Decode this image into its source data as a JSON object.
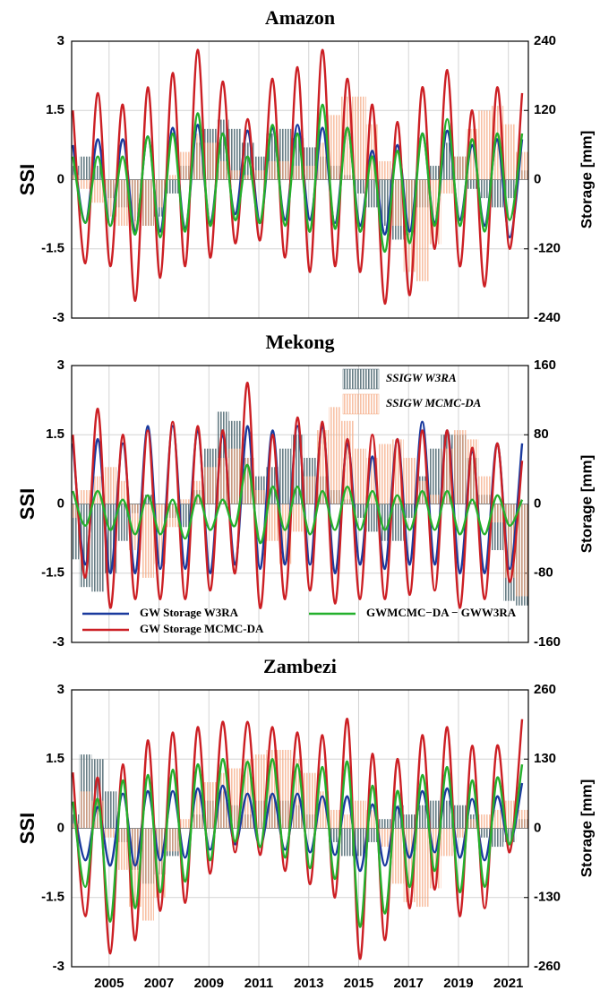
{
  "chart_data": [
    {
      "type": "bar-line",
      "title": "Amazon",
      "ylabel": "SSI",
      "y2label": "Storage [mm]",
      "xlim": [
        2003.5,
        2021.8
      ],
      "xticks": [
        2005,
        2007,
        2009,
        2011,
        2013,
        2015,
        2017,
        2019,
        2021
      ],
      "x_labels_shown": false,
      "ylim": [
        -3,
        3
      ],
      "yticks": [
        -3,
        -1.5,
        0,
        1.5,
        3
      ],
      "y2lim": [
        -240,
        240
      ],
      "y2ticks": [
        -240,
        -120,
        0,
        120,
        240
      ],
      "grid": true,
      "x": [
        2003.55,
        2004.05,
        2004.55,
        2005.05,
        2005.55,
        2006.05,
        2006.55,
        2007.05,
        2007.55,
        2008.05,
        2008.55,
        2009.05,
        2009.55,
        2010.05,
        2010.55,
        2011.05,
        2011.55,
        2012.05,
        2012.55,
        2013.05,
        2013.55,
        2014.05,
        2014.55,
        2015.05,
        2015.55,
        2016.05,
        2016.55,
        2017.05,
        2017.55,
        2018.05,
        2018.55,
        2019.05,
        2019.55,
        2020.05,
        2020.55,
        2021.05,
        2021.55
      ],
      "series": [
        {
          "kind": "bar",
          "color": "#4d6670",
          "values": [
            0.3,
            0.5,
            0.3,
            -0.4,
            -0.6,
            -0.9,
            -1.0,
            -0.8,
            -0.3,
            0.3,
            0.8,
            1.1,
            1.3,
            1.1,
            0.8,
            0.5,
            1.0,
            1.1,
            0.9,
            0.7,
            0.5,
            0.3,
            0.1,
            -0.3,
            -0.6,
            -1.0,
            -1.3,
            -1.2,
            -0.6,
            0.3,
            0.8,
            0.5,
            -0.2,
            -0.4,
            -0.6,
            -0.4,
            0.2
          ]
        },
        {
          "kind": "bar",
          "color": "#f5a77f",
          "values": [
            0.1,
            -0.2,
            -0.5,
            -0.8,
            -1.0,
            -1.1,
            -1.0,
            -0.6,
            0.1,
            0.6,
            1.0,
            0.8,
            0.4,
            0.2,
            0.1,
            0.2,
            0.4,
            0.4,
            0.3,
            0.3,
            0.8,
            1.4,
            1.8,
            1.8,
            1.2,
            0.4,
            -1.0,
            -2.0,
            -2.2,
            -1.4,
            -0.3,
            0.5,
            1.1,
            1.5,
            1.6,
            1.2,
            0.6
          ]
        },
        {
          "kind": "line",
          "axis": "y2",
          "color": "#1a3a9e",
          "values": [
            60,
            -75,
            70,
            -80,
            70,
            -90,
            75,
            -90,
            90,
            -85,
            95,
            -75,
            80,
            -60,
            85,
            -75,
            90,
            -70,
            95,
            -70,
            90,
            -75,
            90,
            -80,
            50,
            -95,
            60,
            -90,
            80,
            -75,
            85,
            -70,
            60,
            -80,
            70,
            -100,
            70
          ]
        },
        {
          "kind": "line",
          "axis": "y2",
          "color": "#cc1f24",
          "values": [
            120,
            -145,
            150,
            -150,
            130,
            -210,
            160,
            -170,
            185,
            -150,
            225,
            -135,
            170,
            -110,
            105,
            -105,
            175,
            -135,
            195,
            -160,
            225,
            -150,
            175,
            -160,
            130,
            -215,
            100,
            -200,
            160,
            -120,
            190,
            -150,
            120,
            -185,
            160,
            -120,
            150
          ]
        },
        {
          "kind": "line",
          "axis": "y2",
          "color": "#24b02c",
          "values": [
            40,
            -75,
            40,
            -80,
            40,
            -95,
            75,
            -100,
            80,
            -90,
            115,
            -80,
            80,
            -70,
            40,
            -75,
            95,
            -80,
            80,
            -90,
            130,
            -85,
            90,
            -90,
            40,
            -125,
            50,
            -110,
            80,
            -80,
            105,
            -80,
            70,
            -90,
            80,
            -70,
            80
          ]
        }
      ]
    },
    {
      "type": "bar-line",
      "title": "Mekong",
      "ylabel": "SSI",
      "y2label": "Storage [mm]",
      "xlim": [
        2003.5,
        2021.8
      ],
      "xticks": [
        2005,
        2007,
        2009,
        2011,
        2013,
        2015,
        2017,
        2019,
        2021
      ],
      "x_labels_shown": false,
      "ylim": [
        -3,
        3
      ],
      "yticks": [
        -3,
        -1.5,
        0,
        1.5,
        3
      ],
      "y2lim": [
        -160,
        160
      ],
      "y2ticks": [
        -160,
        -80,
        0,
        80,
        160
      ],
      "grid": true,
      "x": [
        2003.55,
        2004.05,
        2004.55,
        2005.05,
        2005.55,
        2006.05,
        2006.55,
        2007.05,
        2007.55,
        2008.05,
        2008.55,
        2009.05,
        2009.55,
        2010.05,
        2010.55,
        2011.05,
        2011.55,
        2012.05,
        2012.55,
        2013.05,
        2013.55,
        2014.05,
        2014.55,
        2015.05,
        2015.55,
        2016.05,
        2016.55,
        2017.05,
        2017.55,
        2018.05,
        2018.55,
        2019.05,
        2019.55,
        2020.05,
        2020.55,
        2021.05,
        2021.55
      ],
      "series": [
        {
          "kind": "bar",
          "name": "SSIGW W3RA",
          "color": "#4d6670",
          "values": [
            -1.2,
            -1.8,
            -1.9,
            -1.5,
            -0.8,
            -0.2,
            0.2,
            0.0,
            -0.3,
            -0.5,
            0.3,
            1.2,
            2.0,
            1.8,
            1.0,
            0.6,
            0.8,
            1.2,
            1.5,
            1.0,
            0.6,
            0.3,
            0.1,
            -0.3,
            -0.6,
            -0.8,
            -0.8,
            -0.3,
            0.6,
            1.2,
            1.5,
            1.5,
            1.0,
            0.2,
            -1.0,
            -2.1,
            -2.2
          ]
        },
        {
          "kind": "bar",
          "name": "SSIGW MCMC-DA",
          "color": "#f5a77f",
          "values": [
            -0.3,
            0.3,
            0.6,
            0.8,
            0.5,
            -1.0,
            -1.6,
            -1.3,
            -0.5,
            0.1,
            0.5,
            0.8,
            1.0,
            1.2,
            1.0,
            0.3,
            -0.8,
            -1.3,
            -0.6,
            0.6,
            1.6,
            2.1,
            1.8,
            1.2,
            1.0,
            1.3,
            1.4,
            1.0,
            0.5,
            0.2,
            1.2,
            1.6,
            1.4,
            0.6,
            -0.4,
            -1.6,
            -2.0
          ]
        },
        {
          "kind": "line",
          "axis": "y2",
          "name": "GW Storage W3RA",
          "color": "#1a3a9e",
          "values": [
            70,
            -70,
            75,
            -80,
            70,
            -80,
            90,
            -75,
            90,
            -75,
            85,
            -80,
            80,
            -70,
            90,
            -75,
            85,
            -70,
            90,
            -70,
            90,
            -80,
            70,
            -70,
            55,
            -75,
            75,
            -70,
            95,
            -70,
            85,
            -80,
            60,
            -80,
            70,
            -75,
            70
          ]
        },
        {
          "kind": "line",
          "axis": "y2",
          "name": "GW Storage MCMC-DA",
          "color": "#cc1f24",
          "values": [
            80,
            -85,
            110,
            -120,
            80,
            -110,
            85,
            -110,
            95,
            -110,
            90,
            -100,
            85,
            -80,
            140,
            -120,
            80,
            -110,
            100,
            -100,
            95,
            -115,
            75,
            -110,
            80,
            -110,
            75,
            -105,
            85,
            -100,
            85,
            -120,
            65,
            -110,
            70,
            -90,
            50
          ]
        },
        {
          "kind": "line",
          "axis": "y2",
          "name": "GWMCMC−DA − GWW3RA",
          "color": "#24b02c",
          "values": [
            15,
            -25,
            15,
            -30,
            5,
            -35,
            10,
            -35,
            5,
            -40,
            10,
            -30,
            5,
            -25,
            45,
            -45,
            20,
            -30,
            20,
            -35,
            15,
            -30,
            20,
            -30,
            15,
            -30,
            10,
            -30,
            15,
            -30,
            15,
            -35,
            5,
            -35,
            10,
            -25,
            5
          ]
        }
      ]
    },
    {
      "type": "bar-line",
      "title": "Zambezi",
      "ylabel": "SSI",
      "y2label": "Storage [mm]",
      "xlim": [
        2003.5,
        2021.8
      ],
      "xticks": [
        2005,
        2007,
        2009,
        2011,
        2013,
        2015,
        2017,
        2019,
        2021
      ],
      "x_labels_shown": true,
      "ylim": [
        -3,
        3
      ],
      "yticks": [
        -3,
        -1.5,
        0,
        1.5,
        3
      ],
      "y2lim": [
        -260,
        260
      ],
      "y2ticks": [
        -260,
        -130,
        0,
        130,
        260
      ],
      "grid": true,
      "x": [
        2003.55,
        2004.05,
        2004.55,
        2005.05,
        2005.55,
        2006.05,
        2006.55,
        2007.05,
        2007.55,
        2008.05,
        2008.55,
        2009.05,
        2009.55,
        2010.05,
        2010.55,
        2011.05,
        2011.55,
        2012.05,
        2012.55,
        2013.05,
        2013.55,
        2014.05,
        2014.55,
        2015.05,
        2015.55,
        2016.05,
        2016.55,
        2017.05,
        2017.55,
        2018.05,
        2018.55,
        2019.05,
        2019.55,
        2020.05,
        2020.55,
        2021.05,
        2021.55
      ],
      "series": [
        {
          "kind": "bar",
          "color": "#4d6670",
          "values": [
            0.3,
            1.6,
            1.5,
            0.8,
            -0.3,
            -0.9,
            -1.2,
            -1.0,
            -0.6,
            0.0,
            0.3,
            0.6,
            0.8,
            0.5,
            0.3,
            0.6,
            0.7,
            0.6,
            0.5,
            0.3,
            0.0,
            -0.3,
            -0.6,
            -0.6,
            -0.3,
            0.2,
            0.5,
            0.3,
            0.5,
            0.6,
            0.6,
            0.5,
            0.3,
            -0.2,
            -0.4,
            -0.3,
            0.2
          ]
        },
        {
          "kind": "bar",
          "color": "#f5a77f",
          "values": [
            0.1,
            0.8,
            0.6,
            -0.2,
            -0.9,
            -1.7,
            -2.0,
            -1.5,
            -0.5,
            0.2,
            0.8,
            1.0,
            1.2,
            1.3,
            1.5,
            1.6,
            1.7,
            1.7,
            1.5,
            1.2,
            0.8,
            0.4,
            0.3,
            0.6,
            0.4,
            -0.4,
            -1.2,
            -1.6,
            -1.7,
            -1.3,
            -0.6,
            -0.2,
            0.2,
            0.3,
            0.4,
            0.6,
            0.4
          ]
        },
        {
          "kind": "line",
          "axis": "y2",
          "color": "#1a3a9e",
          "values": [
            50,
            -60,
            40,
            -70,
            65,
            -70,
            70,
            -60,
            70,
            -55,
            75,
            -40,
            80,
            -30,
            65,
            -35,
            65,
            -40,
            65,
            -45,
            60,
            -50,
            60,
            -80,
            45,
            -70,
            40,
            -55,
            70,
            -45,
            75,
            -55,
            55,
            -60,
            60,
            -30,
            85
          ]
        },
        {
          "kind": "line",
          "axis": "y2",
          "color": "#cc1f24",
          "values": [
            105,
            -165,
            95,
            -235,
            120,
            -210,
            165,
            -155,
            180,
            -140,
            190,
            -85,
            200,
            -45,
            200,
            -50,
            190,
            -80,
            180,
            -105,
            175,
            -130,
            205,
            -245,
            140,
            -210,
            130,
            -150,
            175,
            -115,
            190,
            -165,
            155,
            -150,
            155,
            -45,
            205
          ]
        },
        {
          "kind": "line",
          "axis": "y2",
          "color": "#24b02c",
          "values": [
            50,
            -110,
            55,
            -175,
            90,
            -150,
            100,
            -120,
            110,
            -100,
            120,
            -60,
            130,
            -25,
            125,
            -35,
            130,
            -55,
            120,
            -75,
            115,
            -95,
            125,
            -185,
            80,
            -160,
            70,
            -110,
            100,
            -80,
            115,
            -120,
            90,
            -110,
            95,
            -30,
            120
          ]
        }
      ]
    }
  ]
}
